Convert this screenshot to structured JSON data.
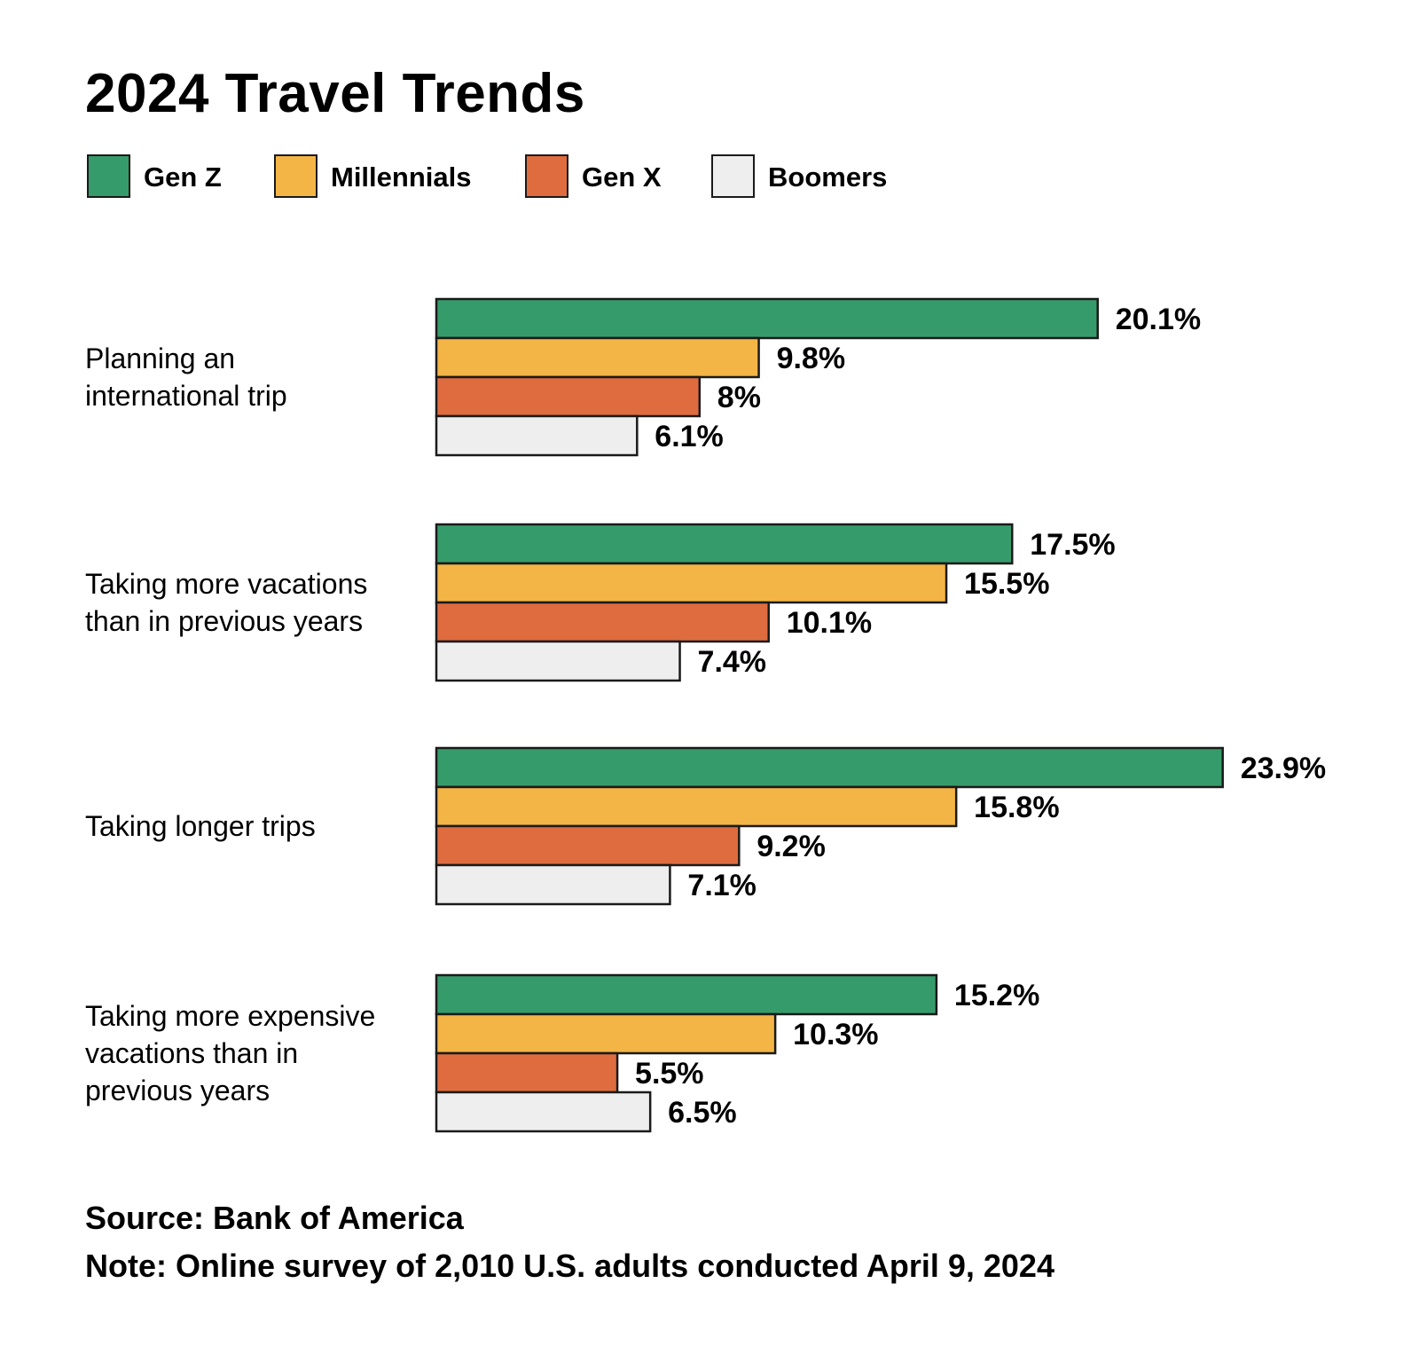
{
  "chart_data": {
    "type": "bar",
    "orientation": "horizontal",
    "title": "2024 Travel Trends",
    "categories": [
      [
        "Planning an",
        "international trip"
      ],
      [
        "Taking more vacations",
        "than in previous years"
      ],
      [
        "Taking longer trips"
      ],
      [
        "Taking more expensive",
        "vacations than in",
        "previous years"
      ]
    ],
    "series": [
      {
        "name": "Gen Z",
        "color": "#369b6a",
        "values": [
          20.1,
          17.5,
          23.9,
          15.2
        ],
        "labels": [
          "20.1%",
          "17.5%",
          "23.9%",
          "15.2%"
        ]
      },
      {
        "name": "Millennials",
        "color": "#f3b545",
        "values": [
          9.8,
          15.5,
          15.8,
          10.3
        ],
        "labels": [
          "9.8%",
          "15.5%",
          "15.8%",
          "10.3%"
        ]
      },
      {
        "name": "Gen X",
        "color": "#df6c3f",
        "values": [
          8,
          10.1,
          9.2,
          5.5
        ],
        "labels": [
          "8%",
          "10.1%",
          "9.2%",
          "5.5%"
        ]
      },
      {
        "name": "Boomers",
        "color": "#eeeeee",
        "values": [
          6.1,
          7.4,
          7.1,
          6.5
        ],
        "labels": [
          "6.1%",
          "7.4%",
          "7.1%",
          "6.5%"
        ]
      }
    ],
    "xlabel": "",
    "ylabel": "",
    "xlim": [
      0,
      24
    ],
    "grid": false,
    "legend_position": "top-left"
  },
  "footer": {
    "source": "Source: Bank of America",
    "note": "Note: Online survey of 2,010 U.S. adults conducted April 9, 2024"
  }
}
